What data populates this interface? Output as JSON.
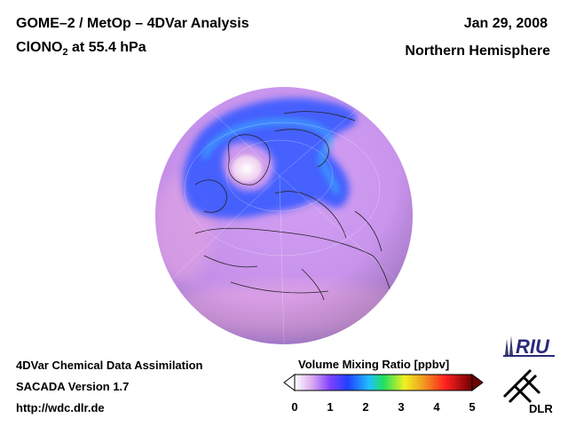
{
  "header": {
    "title_line1": "GOME–2 / MetOp – 4DVar Analysis",
    "species_main": "ClONO",
    "species_sub": "2",
    "species_rest": " at 55.4 hPa",
    "date": "Jan 29, 2008",
    "region": "Northern Hemisphere"
  },
  "footer": {
    "line1": "4DVar Chemical Data Assimilation",
    "line2": "SACADA Version 1.7",
    "line3": "http://wdc.dlr.de"
  },
  "colorbar": {
    "label": "Volume Mixing Ratio [ppbv]",
    "ticks": [
      "0",
      "1",
      "2",
      "3",
      "4",
      "5"
    ],
    "colors": [
      "#ffffff",
      "#d8a8f0",
      "#8040ff",
      "#2040ff",
      "#20c0ff",
      "#20e060",
      "#f0f020",
      "#f0a020",
      "#ff2020",
      "#700000"
    ]
  },
  "logos": {
    "riu_text": "RIU",
    "dlr_text": "DLR"
  },
  "map": {
    "projection": "orthographic",
    "background_color": "#cc99ee",
    "vortex_color": "#3355ff",
    "high_color": "#f0d0f0"
  }
}
